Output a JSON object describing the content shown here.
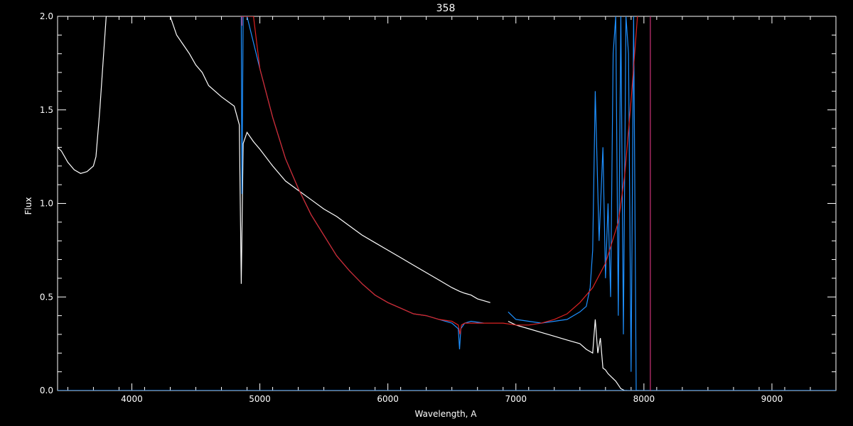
{
  "chart_data": {
    "type": "line",
    "title": "358",
    "xlabel": "Wavelength, A",
    "ylabel": "Flux",
    "xlim": [
      3420,
      9500
    ],
    "ylim": [
      0,
      2.0
    ],
    "x_ticks": [
      4000,
      5000,
      6000,
      7000,
      8000,
      9000
    ],
    "x_tick_labels": [
      "4000",
      "5000",
      "6000",
      "7000",
      "8000",
      "9000"
    ],
    "y_ticks": [
      0,
      0.5,
      1.0,
      1.5,
      2.0
    ],
    "y_tick_labels": [
      "0.0",
      "0.5",
      "1.0",
      "1.5",
      "2.0"
    ],
    "grid": false,
    "colors": {
      "background": "#000000",
      "axes": "#ffffff",
      "white_series": "#ffffff",
      "blue_series": "#1e90ff",
      "red_series": "#dd2222",
      "vline": "#cc3377"
    },
    "series": [
      {
        "color": "#ffffff",
        "segments": [
          {
            "x": [
              3420,
              3450,
              3500,
              3550,
              3600,
              3650,
              3700,
              3720,
              3750,
              3800,
              3850,
              3900,
              3950,
              4000,
              4050,
              4100,
              4150,
              4200,
              4250,
              4300,
              4350,
              4400,
              4450,
              4500,
              4550,
              4600,
              4700,
              4800,
              4840,
              4855,
              4870,
              4900,
              4950,
              5000,
              5100,
              5200,
              5300,
              5400,
              5500,
              5600,
              5700,
              5800,
              5900,
              6000,
              6100,
              6200,
              6300,
              6400,
              6500,
              6560,
              6600,
              6650,
              6700,
              6800
            ],
            "y": [
              1.3,
              1.28,
              1.22,
              1.18,
              1.16,
              1.17,
              1.2,
              1.25,
              1.5,
              2.0,
              2.0,
              2.0,
              2.0,
              2.0,
              2.0,
              2.0,
              2.0,
              2.0,
              2.0,
              2.0,
              1.9,
              1.85,
              1.8,
              1.74,
              1.7,
              1.63,
              1.57,
              1.52,
              1.42,
              0.57,
              1.32,
              1.38,
              1.33,
              1.29,
              1.2,
              1.12,
              1.07,
              1.02,
              0.97,
              0.93,
              0.88,
              0.83,
              0.79,
              0.75,
              0.71,
              0.67,
              0.63,
              0.59,
              0.55,
              0.53,
              0.52,
              0.51,
              0.49,
              0.47
            ]
          },
          {
            "x": [
              6940,
              7000,
              7100,
              7200,
              7300,
              7400,
              7500,
              7550,
              7600,
              7620,
              7640,
              7660,
              7680,
              7700,
              7720,
              7750,
              7780,
              7800,
              7820,
              7850,
              7870
            ],
            "y": [
              0.37,
              0.35,
              0.33,
              0.31,
              0.29,
              0.27,
              0.25,
              0.22,
              0.2,
              0.38,
              0.2,
              0.28,
              0.12,
              0.11,
              0.09,
              0.07,
              0.05,
              0.03,
              0.01,
              0,
              0
            ]
          }
        ]
      },
      {
        "color": "#1e90ff",
        "segments": [
          {
            "x": [
              4855,
              4860,
              4870,
              4880,
              4900,
              5000,
              5100,
              5200,
              5300,
              5400,
              5500,
              5600,
              5700,
              5800,
              5900,
              6000,
              6100,
              6200,
              6300,
              6400,
              6500,
              6550,
              6560,
              6570,
              6600,
              6650,
              6750
            ],
            "y": [
              2.0,
              1.05,
              2.0,
              2.0,
              2.0,
              1.72,
              1.46,
              1.24,
              1.08,
              0.94,
              0.83,
              0.72,
              0.64,
              0.57,
              0.51,
              0.47,
              0.44,
              0.41,
              0.4,
              0.38,
              0.36,
              0.33,
              0.22,
              0.33,
              0.36,
              0.37,
              0.36
            ]
          },
          {
            "x": [
              6940,
              7000,
              7100,
              7200,
              7300,
              7400,
              7500,
              7550,
              7580,
              7600,
              7620,
              7650,
              7680,
              7700,
              7720,
              7740,
              7760,
              7780,
              7800,
              7820,
              7840,
              7860,
              7880,
              7900,
              7920,
              7940,
              7960
            ],
            "y": [
              0.42,
              0.38,
              0.37,
              0.36,
              0.37,
              0.38,
              0.42,
              0.45,
              0.55,
              0.75,
              1.6,
              0.8,
              1.3,
              0.6,
              1.0,
              0.5,
              1.8,
              2.0,
              0.4,
              2.0,
              0.3,
              2.0,
              1.8,
              0.1,
              2.0,
              0.0,
              0.0
            ]
          },
          {
            "x": [
              3420,
              9500
            ],
            "y": [
              0.0,
              0.0
            ]
          }
        ]
      },
      {
        "color": "#dd2222",
        "segments": [
          {
            "x": [
              4850,
              4900,
              4950,
              5000,
              5100,
              5200,
              5300,
              5400,
              5500,
              5600,
              5700,
              5800,
              5900,
              6000,
              6100,
              6200,
              6300,
              6400,
              6500,
              6550,
              6563,
              6575,
              6600,
              6700,
              6800,
              6900,
              7000,
              7100,
              7200,
              7300,
              7400,
              7500,
              7600,
              7700,
              7800,
              7850,
              7900,
              7950
            ],
            "y": [
              2.0,
              2.0,
              2.0,
              1.72,
              1.46,
              1.24,
              1.08,
              0.94,
              0.83,
              0.72,
              0.64,
              0.57,
              0.51,
              0.47,
              0.44,
              0.41,
              0.4,
              0.38,
              0.37,
              0.35,
              0.3,
              0.35,
              0.36,
              0.36,
              0.36,
              0.36,
              0.35,
              0.35,
              0.36,
              0.38,
              0.41,
              0.47,
              0.55,
              0.68,
              0.9,
              1.15,
              1.55,
              2.0
            ]
          }
        ]
      },
      {
        "color": "#cc3377",
        "segments": [
          {
            "x": [
              8050,
              8050
            ],
            "y": [
              0.0,
              2.0
            ]
          },
          {
            "x": [
              4860,
              4860
            ],
            "y": [
              1.95,
              2.0
            ]
          }
        ]
      }
    ]
  }
}
